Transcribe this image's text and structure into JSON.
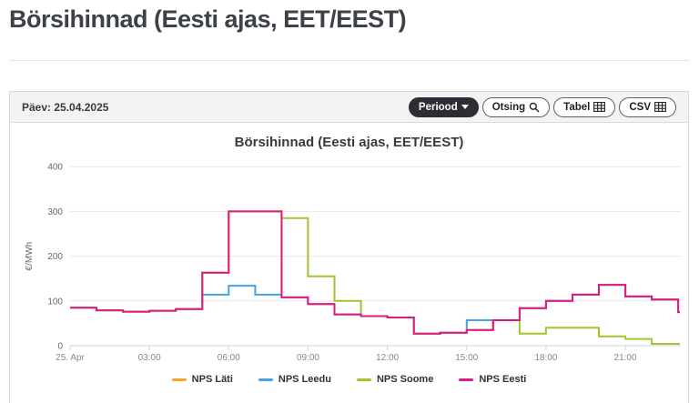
{
  "header": {
    "title": "Börsihinnad (Eesti ajas, EET/EEST)"
  },
  "toolbar": {
    "date_label": "Päev: 25.04.2025",
    "buttons": {
      "period": "Periood",
      "search": "Otsing",
      "table": "Tabel",
      "csv": "CSV"
    }
  },
  "chart_data": {
    "type": "line",
    "step": true,
    "title": "Börsihinnad (Eesti ajas, EET/EEST)",
    "xlabel": "",
    "ylabel": "€/MWh",
    "ylim": [
      0,
      400
    ],
    "yticks": [
      0,
      100,
      200,
      300,
      400
    ],
    "x_unit": "hour_of_day",
    "x_range": [
      0,
      24
    ],
    "grid": "horizontal",
    "legend_position": "bottom",
    "xticks": [
      {
        "hour": 0,
        "label": "25. Apr"
      },
      {
        "hour": 3,
        "label": "03:00"
      },
      {
        "hour": 6,
        "label": "06:00"
      },
      {
        "hour": 9,
        "label": "09:00"
      },
      {
        "hour": 12,
        "label": "12:00"
      },
      {
        "hour": 15,
        "label": "15:00"
      },
      {
        "hour": 18,
        "label": "18:00"
      },
      {
        "hour": 21,
        "label": "21:00"
      }
    ],
    "series": [
      {
        "name": "NPS Läti",
        "color": "#f5a623",
        "values": [
          85,
          79,
          76,
          78,
          82,
          163,
          300,
          300,
          108,
          93,
          70,
          66,
          63,
          27,
          29,
          35,
          57,
          84,
          100,
          114,
          136,
          110,
          103,
          75
        ]
      },
      {
        "name": "NPS Leedu",
        "color": "#45a2e2",
        "values": [
          85,
          79,
          76,
          78,
          82,
          114,
          134,
          114,
          108,
          93,
          70,
          66,
          63,
          27,
          29,
          57,
          57,
          84,
          100,
          114,
          136,
          110,
          103,
          75
        ]
      },
      {
        "name": "NPS Soome",
        "color": "#9fc62e",
        "values": [
          85,
          79,
          76,
          78,
          82,
          163,
          300,
          300,
          285,
          155,
          100,
          66,
          63,
          27,
          29,
          35,
          57,
          27,
          40,
          40,
          21,
          15,
          4,
          4
        ]
      },
      {
        "name": "NPS Eesti",
        "color": "#e01a84",
        "values": [
          85,
          79,
          76,
          78,
          82,
          163,
          300,
          300,
          108,
          93,
          70,
          66,
          63,
          27,
          29,
          35,
          57,
          84,
          100,
          114,
          136,
          110,
          103,
          75
        ]
      }
    ]
  }
}
